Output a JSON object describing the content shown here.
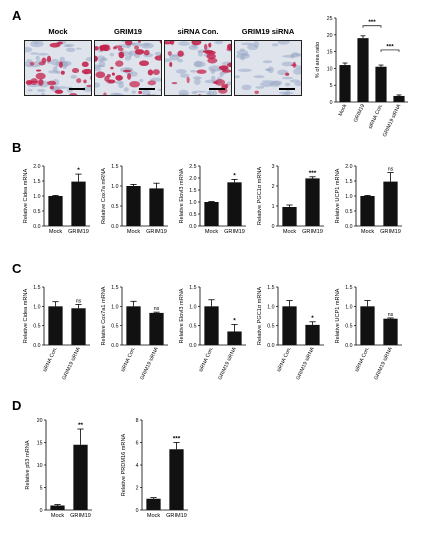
{
  "panels": {
    "A": "A",
    "B": "B",
    "C": "C",
    "D": "D"
  },
  "micrographs": [
    {
      "label": "Mock",
      "stain": "high"
    },
    {
      "label": "GRIM19",
      "stain": "very-high"
    },
    {
      "label": "siRNA Con.",
      "stain": "high"
    },
    {
      "label": "GRIM19 siRNA",
      "stain": "low"
    }
  ],
  "colors": {
    "bar": "#111111",
    "stain": "#c4214a",
    "background_cells": "#9aa9c8"
  },
  "chart_data": [
    {
      "id": "A",
      "type": "bar",
      "ylabel": "% of area ratio",
      "ylim": [
        0,
        25
      ],
      "yticks": [
        0,
        5,
        10,
        15,
        20,
        25
      ],
      "categories": [
        "Mock",
        "GRIM19",
        "siRNA Con.",
        "GRIM19 siRNA"
      ],
      "values": [
        11,
        19,
        10.5,
        1.8
      ],
      "errors": [
        0.6,
        0.7,
        0.5,
        0.3
      ],
      "brackets": [
        {
          "from": 1,
          "to": 2,
          "label": "***"
        },
        {
          "from": 2,
          "to": 3,
          "label": "***"
        }
      ]
    },
    {
      "id": "B1",
      "type": "bar",
      "ylabel": "Relative Cidea mRNA",
      "ylim": [
        0,
        2.0
      ],
      "yticks": [
        0,
        0.5,
        1.0,
        1.5,
        2.0
      ],
      "categories": [
        "Mock",
        "GRIM19"
      ],
      "values": [
        1.0,
        1.48
      ],
      "errors": [
        0.02,
        0.25
      ],
      "sig": [
        "",
        "*"
      ]
    },
    {
      "id": "B2",
      "type": "bar",
      "ylabel": "Relative Cox7a mRNA",
      "ylim": [
        0,
        1.5
      ],
      "yticks": [
        0,
        0.5,
        1.0,
        1.5
      ],
      "categories": [
        "Mock",
        "GRIM19"
      ],
      "values": [
        1.0,
        0.94
      ],
      "errors": [
        0.04,
        0.13
      ],
      "sig": [
        "",
        ""
      ]
    },
    {
      "id": "B3",
      "type": "bar",
      "ylabel": "Relative Elovl3 mRNA",
      "ylim": [
        0,
        2.5
      ],
      "yticks": [
        0,
        0.5,
        1.0,
        1.5,
        2.0,
        2.5
      ],
      "categories": [
        "Mock",
        "GRIM19"
      ],
      "values": [
        1.0,
        1.82
      ],
      "errors": [
        0.02,
        0.12
      ],
      "sig": [
        "",
        "*"
      ]
    },
    {
      "id": "B4",
      "type": "bar",
      "ylabel": "Relative PGC1α mRNA",
      "ylim": [
        0,
        3
      ],
      "yticks": [
        0,
        1,
        2,
        3
      ],
      "categories": [
        "Mock",
        "GRIM19"
      ],
      "values": [
        0.95,
        2.38
      ],
      "errors": [
        0.1,
        0.08
      ],
      "sig": [
        "",
        "***"
      ]
    },
    {
      "id": "B5",
      "type": "bar",
      "ylabel": "Relative UCP1 mRNA",
      "ylim": [
        0,
        2.0
      ],
      "yticks": [
        0,
        0.5,
        1.0,
        1.5,
        2.0
      ],
      "categories": [
        "Mock",
        "GRIM19"
      ],
      "values": [
        1.0,
        1.48
      ],
      "errors": [
        0.02,
        0.3
      ],
      "sig": [
        "",
        "ns"
      ]
    },
    {
      "id": "C1",
      "type": "bar",
      "ylabel": "Relative Cidea mRNA",
      "ylim": [
        0,
        1.5
      ],
      "yticks": [
        0,
        0.5,
        1.0,
        1.5
      ],
      "categories": [
        "siRNA Con.",
        "GRIM19 siRNA"
      ],
      "values": [
        1.0,
        0.95
      ],
      "errors": [
        0.12,
        0.1
      ],
      "sig": [
        "",
        "ns"
      ]
    },
    {
      "id": "C2",
      "type": "bar",
      "ylabel": "Relative Cox7a1 mRNA",
      "ylim": [
        0,
        1.5
      ],
      "yticks": [
        0,
        0.5,
        1.0,
        1.5
      ],
      "categories": [
        "siRNA Con.",
        "GRIM19 siRNA"
      ],
      "values": [
        1.0,
        0.83
      ],
      "errors": [
        0.13,
        0.02
      ],
      "sig": [
        "",
        "ns"
      ]
    },
    {
      "id": "C3",
      "type": "bar",
      "ylabel": "Relative Elovl3 mRNA",
      "ylim": [
        0,
        1.5
      ],
      "yticks": [
        0,
        0.5,
        1.0,
        1.5
      ],
      "categories": [
        "siRNA Con.",
        "GRIM19 siRNA"
      ],
      "values": [
        1.0,
        0.35
      ],
      "errors": [
        0.17,
        0.18
      ],
      "sig": [
        "",
        "*"
      ]
    },
    {
      "id": "C4",
      "type": "bar",
      "ylabel": "Relative PGC1α mRNA",
      "ylim": [
        0,
        1.5
      ],
      "yticks": [
        0,
        0.5,
        1.0,
        1.5
      ],
      "categories": [
        "siRNA Con.",
        "GRIM19 siRNA"
      ],
      "values": [
        1.0,
        0.52
      ],
      "errors": [
        0.15,
        0.08
      ],
      "sig": [
        "",
        "*"
      ]
    },
    {
      "id": "C5",
      "type": "bar",
      "ylabel": "Relative UCP1 mRNA",
      "ylim": [
        0,
        1.5
      ],
      "yticks": [
        0,
        0.5,
        1.0,
        1.5
      ],
      "categories": [
        "siRNA Con.",
        "GRIM19 siRNA"
      ],
      "values": [
        1.0,
        0.68
      ],
      "errors": [
        0.15,
        0.02
      ],
      "sig": [
        "",
        "ns"
      ]
    },
    {
      "id": "D1",
      "type": "bar",
      "ylabel": "Relative p53 mRNA",
      "ylim": [
        0,
        20
      ],
      "yticks": [
        0,
        5,
        10,
        15,
        20
      ],
      "categories": [
        "Mock",
        "GRIM19"
      ],
      "values": [
        1.0,
        14.5
      ],
      "errors": [
        0.2,
        3.5
      ],
      "sig": [
        "",
        "**"
      ]
    },
    {
      "id": "D2",
      "type": "bar",
      "ylabel": "Relative PRDM16 mRNA",
      "ylim": [
        0,
        8
      ],
      "yticks": [
        0,
        2,
        4,
        6,
        8
      ],
      "categories": [
        "Mock",
        "GRIM19"
      ],
      "values": [
        1.0,
        5.4
      ],
      "errors": [
        0.1,
        0.6
      ],
      "sig": [
        "",
        "***"
      ]
    }
  ]
}
